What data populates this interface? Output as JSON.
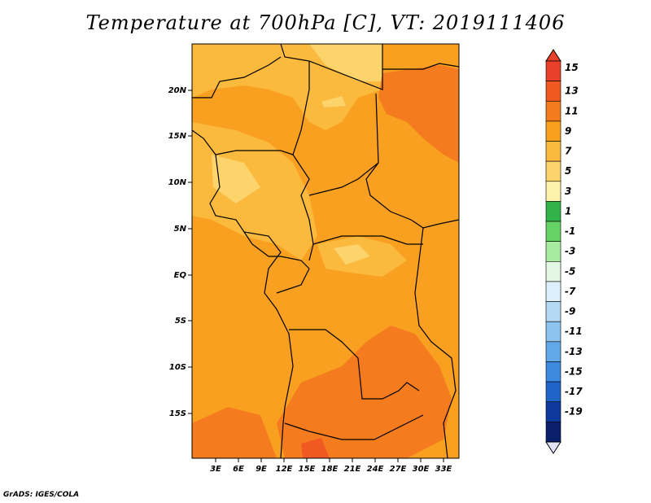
{
  "title": "Temperature at 700hPa [C], VT: 2019111406",
  "footer": "GrADS: IGES/COLA",
  "map": {
    "lat_ticks": [
      "20N",
      "15N",
      "10N",
      "5N",
      "EQ",
      "5S",
      "10S",
      "15S"
    ],
    "lon_ticks": [
      "3E",
      "6E",
      "9E",
      "12E",
      "15E",
      "18E",
      "21E",
      "24E",
      "27E",
      "30E",
      "33E"
    ]
  },
  "colorbar": {
    "labels": [
      "15",
      "13",
      "11",
      "9",
      "7",
      "5",
      "3",
      "1",
      "-1",
      "-3",
      "-5",
      "-7",
      "-9",
      "-11",
      "-13",
      "-15",
      "-17",
      "-19"
    ],
    "colors": [
      "#e8402a",
      "#f05a22",
      "#f57b1f",
      "#f9a01e",
      "#fbb93d",
      "#fdd36c",
      "#fef2ad",
      "#32b34a",
      "#64d264",
      "#a8eaa0",
      "#e3f7e3",
      "#dceef9",
      "#b3d9f5",
      "#8cc3ef",
      "#63a8e8",
      "#3e8ae0",
      "#1f64c9",
      "#0d3a9c",
      "#0a1f6c"
    ],
    "under_color": "#e3e3f7"
  }
}
